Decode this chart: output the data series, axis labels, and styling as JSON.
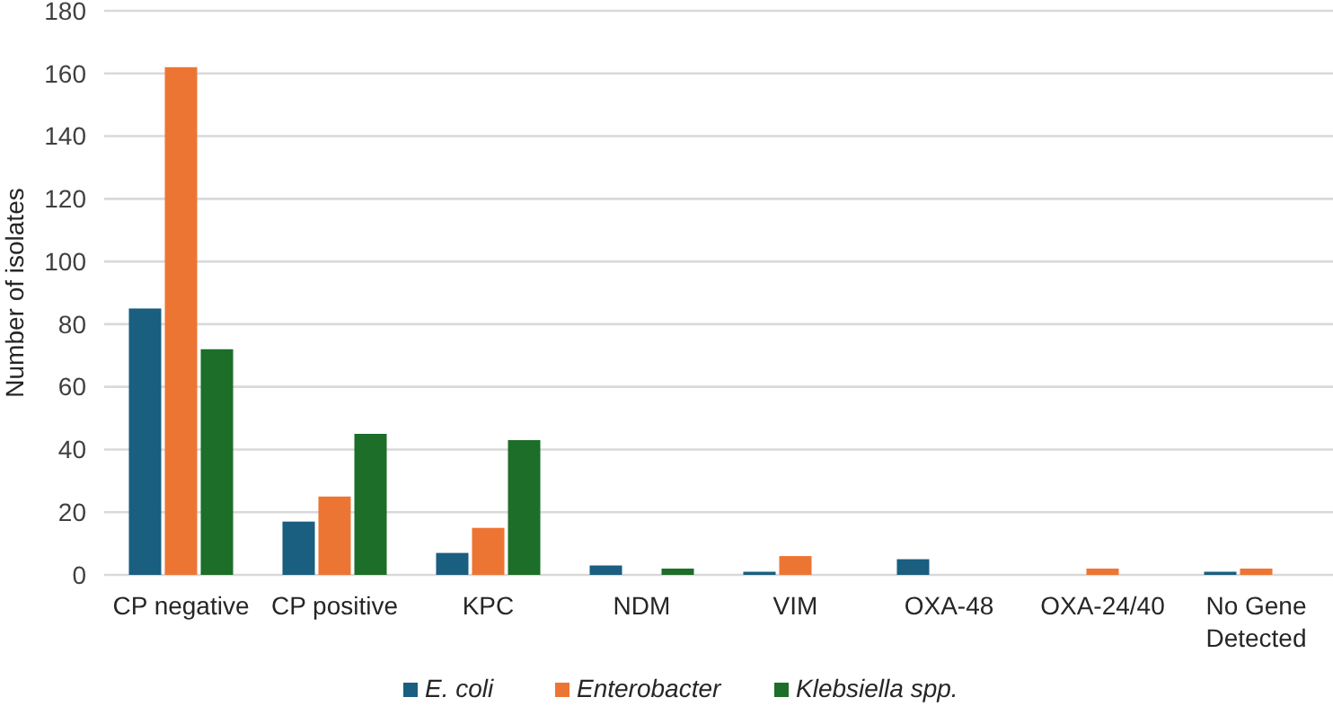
{
  "chart_data": {
    "type": "bar",
    "ylabel": "Number of isolates",
    "categories": [
      "CP negative",
      "CP positive",
      "KPC",
      "NDM",
      "VIM",
      "OXA-48",
      "OXA-24/40",
      "No Gene Detected"
    ],
    "series": [
      {
        "name": "E. coli",
        "color": "#1a5e80",
        "values": [
          85,
          17,
          7,
          3,
          1,
          5,
          0,
          1
        ]
      },
      {
        "name": "Enterobacter",
        "color": "#ed7534",
        "values": [
          162,
          25,
          15,
          0,
          6,
          0,
          2,
          2
        ]
      },
      {
        "name": "Klebsiella spp.",
        "color": "#1c6e28",
        "values": [
          72,
          45,
          43,
          2,
          0,
          0,
          0,
          0
        ]
      }
    ],
    "ylim": [
      0,
      180
    ],
    "yticks": [
      0,
      20,
      40,
      60,
      80,
      100,
      120,
      140,
      160,
      180
    ],
    "grid": "y",
    "legend": "bottom"
  }
}
